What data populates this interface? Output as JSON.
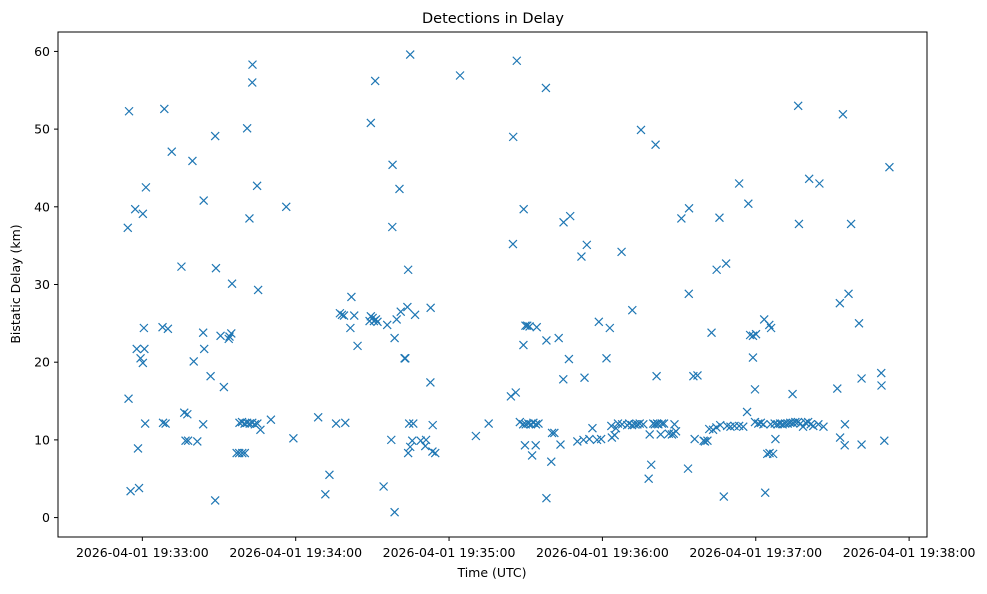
{
  "chart_data": {
    "type": "scatter",
    "title": "Detections in Delay",
    "xlabel": "Time (UTC)",
    "ylabel": "Bistatic Delay (km)",
    "marker": "x",
    "color": "#1f77b4",
    "xlim_seconds": [
      -33,
      307
    ],
    "ylim": [
      -2.5,
      62.5
    ],
    "x_ticks": [
      {
        "value": 0,
        "label": "2026-04-01 19:33:00"
      },
      {
        "value": 60,
        "label": "2026-04-01 19:34:00"
      },
      {
        "value": 120,
        "label": "2026-04-01 19:35:00"
      },
      {
        "value": 180,
        "label": "2026-04-01 19:36:00"
      },
      {
        "value": 240,
        "label": "2026-04-01 19:37:00"
      },
      {
        "value": 300,
        "label": "2026-04-01 19:38:00"
      }
    ],
    "y_ticks": [
      {
        "value": 0,
        "label": "0"
      },
      {
        "value": 10,
        "label": "10"
      },
      {
        "value": 20,
        "label": "20"
      },
      {
        "value": 30,
        "label": "30"
      },
      {
        "value": 40,
        "label": "40"
      },
      {
        "value": 50,
        "label": "50"
      },
      {
        "value": 60,
        "label": "60"
      }
    ],
    "x_units": "seconds after 2026-04-01 19:33:00 UTC",
    "points": [
      [
        -5.2,
        52.3
      ],
      [
        -5.7,
        37.3
      ],
      [
        -5.4,
        15.3
      ],
      [
        -4.6,
        3.4
      ],
      [
        -2.8,
        39.7
      ],
      [
        -2.2,
        21.7
      ],
      [
        -1.7,
        8.9
      ],
      [
        -1.3,
        3.8
      ],
      [
        -0.7,
        20.5
      ],
      [
        0.2,
        39.1
      ],
      [
        0.2,
        19.9
      ],
      [
        0.6,
        24.4
      ],
      [
        0.8,
        21.7
      ],
      [
        1.4,
        42.5
      ],
      [
        1.1,
        12.1
      ],
      [
        8.6,
        52.6
      ],
      [
        7.9,
        24.5
      ],
      [
        8.1,
        12.2
      ],
      [
        9.1,
        12.1
      ],
      [
        10.0,
        24.3
      ],
      [
        11.5,
        47.1
      ],
      [
        15.3,
        32.3
      ],
      [
        16.4,
        13.5
      ],
      [
        17.6,
        13.3
      ],
      [
        16.9,
        9.9
      ],
      [
        17.9,
        9.9
      ],
      [
        19.6,
        45.9
      ],
      [
        20.1,
        20.1
      ],
      [
        21.5,
        9.8
      ],
      [
        24.0,
        40.8
      ],
      [
        23.8,
        23.8
      ],
      [
        24.2,
        21.7
      ],
      [
        23.8,
        12.0
      ],
      [
        26.7,
        18.2
      ],
      [
        28.5,
        49.1
      ],
      [
        28.8,
        32.1
      ],
      [
        28.5,
        2.2
      ],
      [
        30.6,
        23.4
      ],
      [
        31.9,
        16.8
      ],
      [
        34.1,
        23.3
      ],
      [
        33.8,
        23.0
      ],
      [
        34.8,
        23.7
      ],
      [
        35.1,
        30.1
      ],
      [
        41.0,
        50.1
      ],
      [
        41.9,
        38.5
      ],
      [
        43.1,
        58.3
      ],
      [
        43.0,
        56.0
      ],
      [
        44.9,
        42.7
      ],
      [
        45.3,
        29.3
      ],
      [
        36.9,
        8.3
      ],
      [
        37.9,
        8.3
      ],
      [
        39.1,
        8.3
      ],
      [
        40.1,
        8.3
      ],
      [
        38.0,
        12.2
      ],
      [
        39.0,
        12.3
      ],
      [
        40.0,
        12.1
      ],
      [
        41.0,
        12.2
      ],
      [
        42.0,
        12.1
      ],
      [
        43.0,
        12.2
      ],
      [
        44.0,
        12.0
      ],
      [
        45.0,
        12.1
      ],
      [
        46.2,
        11.3
      ],
      [
        50.3,
        12.6
      ],
      [
        56.3,
        40.0
      ],
      [
        59.1,
        10.2
      ],
      [
        68.8,
        12.9
      ],
      [
        77.3,
        26.3
      ],
      [
        78.1,
        26.1
      ],
      [
        78.9,
        26.0
      ],
      [
        75.8,
        12.1
      ],
      [
        79.4,
        12.2
      ],
      [
        81.4,
        24.4
      ],
      [
        81.8,
        28.4
      ],
      [
        82.9,
        26.0
      ],
      [
        84.2,
        22.1
      ],
      [
        88.9,
        25.3
      ],
      [
        89.4,
        25.9
      ],
      [
        90.1,
        25.7
      ],
      [
        90.6,
        25.3
      ],
      [
        91.4,
        25.5
      ],
      [
        92.0,
        25.2
      ],
      [
        89.4,
        50.8
      ],
      [
        91.1,
        56.2
      ],
      [
        95.8,
        24.8
      ],
      [
        97.9,
        45.4
      ],
      [
        97.8,
        37.4
      ],
      [
        98.7,
        23.1
      ],
      [
        99.5,
        25.5
      ],
      [
        100.6,
        42.3
      ],
      [
        101.1,
        26.5
      ],
      [
        102.6,
        20.5
      ],
      [
        102.9,
        20.5
      ],
      [
        103.7,
        27.1
      ],
      [
        104.0,
        31.9
      ],
      [
        104.4,
        12.1
      ],
      [
        104.8,
        9.1
      ],
      [
        105.6,
        9.9
      ],
      [
        106.0,
        12.1
      ],
      [
        106.7,
        26.1
      ],
      [
        108.9,
        9.9
      ],
      [
        111.0,
        10.0
      ],
      [
        112.8,
        27.0
      ],
      [
        112.7,
        17.4
      ],
      [
        113.5,
        8.5
      ],
      [
        114.6,
        8.3
      ],
      [
        113.6,
        11.9
      ],
      [
        110.7,
        9.2
      ],
      [
        104.0,
        8.3
      ],
      [
        97.4,
        10.0
      ],
      [
        94.4,
        4.0
      ],
      [
        98.7,
        0.7
      ],
      [
        73.2,
        5.5
      ],
      [
        71.6,
        3.0
      ],
      [
        104.8,
        59.6
      ],
      [
        124.3,
        56.9
      ],
      [
        130.5,
        10.5
      ],
      [
        135.5,
        12.1
      ],
      [
        144.2,
        15.6
      ],
      [
        146.1,
        16.1
      ],
      [
        145.1,
        49.0
      ],
      [
        145.0,
        35.2
      ],
      [
        146.5,
        58.8
      ],
      [
        147.7,
        12.3
      ],
      [
        149.0,
        12.0
      ],
      [
        150.0,
        12.0
      ],
      [
        151.0,
        12.1
      ],
      [
        152.0,
        12.0
      ],
      [
        153.0,
        12.2
      ],
      [
        154.0,
        12.0
      ],
      [
        155.0,
        12.1
      ],
      [
        149.7,
        9.3
      ],
      [
        149.1,
        22.2
      ],
      [
        149.9,
        24.7
      ],
      [
        150.6,
        24.7
      ],
      [
        151.5,
        24.6
      ],
      [
        149.2,
        39.7
      ],
      [
        152.5,
        8.0
      ],
      [
        153.9,
        9.3
      ],
      [
        154.3,
        24.5
      ],
      [
        157.9,
        55.3
      ],
      [
        158.1,
        2.5
      ],
      [
        158.1,
        22.8
      ],
      [
        160.0,
        7.2
      ],
      [
        160.3,
        10.9
      ],
      [
        161.2,
        10.9
      ],
      [
        162.9,
        23.1
      ],
      [
        163.6,
        9.4
      ],
      [
        164.7,
        17.8
      ],
      [
        164.8,
        38.0
      ],
      [
        166.9,
        20.4
      ],
      [
        167.4,
        38.8
      ],
      [
        170.2,
        9.8
      ],
      [
        171.8,
        33.6
      ],
      [
        172.6,
        10.0
      ],
      [
        173.0,
        18.0
      ],
      [
        173.9,
        35.1
      ],
      [
        174.9,
        10.1
      ],
      [
        176.1,
        11.5
      ],
      [
        177.9,
        10.0
      ],
      [
        178.6,
        25.2
      ],
      [
        179.5,
        10.1
      ],
      [
        181.6,
        20.5
      ],
      [
        182.9,
        24.4
      ],
      [
        183.5,
        11.8
      ],
      [
        183.7,
        10.3
      ],
      [
        184.8,
        10.6
      ],
      [
        185.3,
        11.5
      ],
      [
        186.1,
        12.1
      ],
      [
        187.5,
        34.2
      ],
      [
        187.7,
        12.0
      ],
      [
        189.7,
        11.9
      ],
      [
        190.5,
        12.1
      ],
      [
        191.7,
        26.7
      ],
      [
        191.6,
        11.9
      ],
      [
        192.7,
        12.0
      ],
      [
        193.7,
        12.0
      ],
      [
        194.6,
        12.1
      ],
      [
        195.1,
        49.9
      ],
      [
        196.0,
        12.0
      ],
      [
        198.1,
        5.0
      ],
      [
        198.5,
        10.7
      ],
      [
        199.1,
        6.8
      ],
      [
        199.9,
        12.1
      ],
      [
        200.5,
        12.0
      ],
      [
        201.4,
        12.1
      ],
      [
        200.8,
        48.0
      ],
      [
        201.2,
        18.2
      ],
      [
        201.9,
        12.0
      ],
      [
        202.8,
        10.7
      ],
      [
        203.3,
        12.1
      ],
      [
        204.1,
        12.1
      ],
      [
        206.0,
        10.8
      ],
      [
        207.2,
        10.7
      ],
      [
        207.9,
        10.8
      ],
      [
        208.2,
        12.0
      ],
      [
        208.8,
        11.1
      ],
      [
        210.9,
        38.5
      ],
      [
        213.9,
        39.8
      ],
      [
        213.8,
        28.8
      ],
      [
        213.5,
        6.3
      ],
      [
        215.6,
        18.2
      ],
      [
        216.1,
        10.1
      ],
      [
        217.2,
        18.3
      ],
      [
        219.6,
        9.9
      ],
      [
        220.1,
        9.8
      ],
      [
        221.1,
        9.9
      ],
      [
        221.8,
        11.4
      ],
      [
        222.7,
        23.8
      ],
      [
        223.3,
        11.3
      ],
      [
        224.6,
        11.6
      ],
      [
        224.7,
        31.9
      ],
      [
        225.8,
        38.6
      ],
      [
        226.1,
        11.9
      ],
      [
        227.5,
        2.7
      ],
      [
        228.4,
        32.7
      ],
      [
        228.8,
        11.8
      ],
      [
        230.1,
        11.7
      ],
      [
        231.7,
        11.8
      ],
      [
        233.5,
        11.8
      ],
      [
        233.5,
        43.0
      ],
      [
        235.1,
        11.7
      ],
      [
        236.6,
        13.6
      ],
      [
        237.1,
        40.4
      ],
      [
        237.8,
        23.5
      ],
      [
        238.9,
        20.6
      ],
      [
        238.9,
        23.4
      ],
      [
        239.7,
        16.5
      ],
      [
        239.7,
        12.3
      ],
      [
        240.1,
        23.6
      ],
      [
        241.0,
        12.1
      ],
      [
        242.0,
        12.2
      ],
      [
        243.0,
        12.0
      ],
      [
        243.3,
        25.5
      ],
      [
        243.7,
        3.2
      ],
      [
        244.5,
        8.2
      ],
      [
        245.3,
        24.8
      ],
      [
        245.8,
        12.0
      ],
      [
        245.4,
        8.3
      ],
      [
        246.0,
        24.4
      ],
      [
        246.8,
        8.2
      ],
      [
        247.4,
        12.1
      ],
      [
        247.7,
        10.1
      ],
      [
        248.5,
        12.0
      ],
      [
        249.5,
        12.1
      ],
      [
        250.5,
        12.0
      ],
      [
        251.5,
        12.1
      ],
      [
        252.5,
        12.1
      ],
      [
        253.5,
        12.2
      ],
      [
        254.5,
        12.2
      ],
      [
        255.5,
        12.3
      ],
      [
        256.5,
        12.3
      ],
      [
        257.5,
        12.1
      ],
      [
        258.5,
        11.7
      ],
      [
        259.5,
        12.2
      ],
      [
        260.5,
        12.3
      ],
      [
        261.5,
        12.0
      ],
      [
        262.5,
        11.8
      ],
      [
        264.5,
        12.0
      ],
      [
        266.5,
        11.7
      ],
      [
        254.4,
        15.9
      ],
      [
        256.6,
        53.0
      ],
      [
        256.9,
        37.8
      ],
      [
        260.9,
        43.6
      ],
      [
        264.9,
        43.0
      ],
      [
        271.9,
        16.6
      ],
      [
        272.9,
        27.6
      ],
      [
        273.0,
        10.3
      ],
      [
        274.1,
        51.9
      ],
      [
        274.9,
        12.0
      ],
      [
        274.8,
        9.3
      ],
      [
        276.3,
        28.8
      ],
      [
        277.3,
        37.8
      ],
      [
        280.4,
        25.0
      ],
      [
        281.4,
        17.9
      ],
      [
        281.4,
        9.4
      ],
      [
        289.1,
        18.6
      ],
      [
        289.2,
        17.0
      ],
      [
        290.3,
        9.9
      ],
      [
        292.3,
        45.1
      ]
    ]
  }
}
